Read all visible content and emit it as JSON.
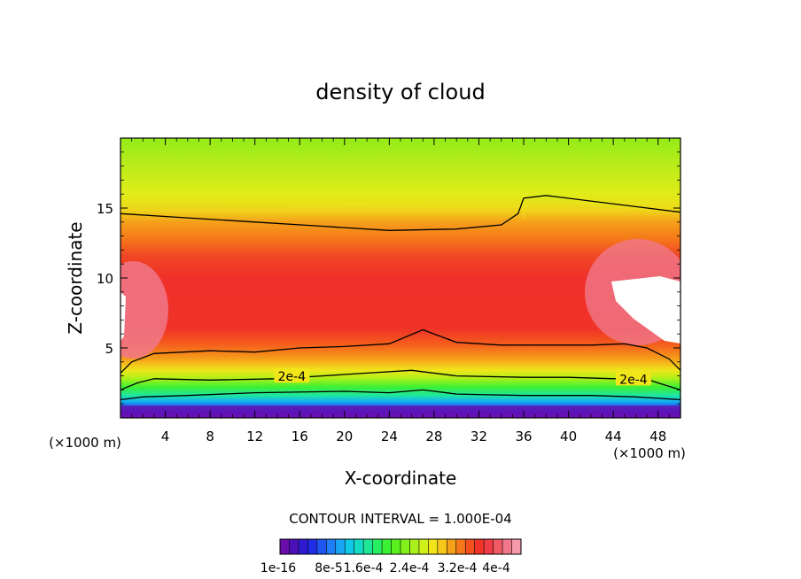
{
  "chart_data": {
    "type": "heatmap",
    "title": "density of cloud",
    "xlabel": "X-coordinate",
    "ylabel": "Z-coordinate",
    "x_unit_label": "(×1000 m)",
    "x_range": [
      0,
      50
    ],
    "y_range": [
      0,
      20
    ],
    "x_ticks": [
      4,
      8,
      12,
      16,
      20,
      24,
      28,
      32,
      36,
      40,
      44,
      48
    ],
    "y_ticks": [
      5,
      10,
      15
    ],
    "contour_interval_text": "CONTOUR INTERVAL = 1.000E-04",
    "contour_labels": [
      {
        "text": "2e-4",
        "x": 15.3,
        "z": 2.9
      },
      {
        "text": "2e-4",
        "x": 45.8,
        "z": 2.7
      }
    ],
    "contour_lines": [
      {
        "name": "1e-4",
        "points": [
          [
            0,
            1.3
          ],
          [
            2,
            1.5
          ],
          [
            6,
            1.6
          ],
          [
            12,
            1.8
          ],
          [
            20,
            1.9
          ],
          [
            24,
            1.8
          ],
          [
            27,
            2.0
          ],
          [
            30,
            1.7
          ],
          [
            36,
            1.6
          ],
          [
            42,
            1.6
          ],
          [
            46,
            1.5
          ],
          [
            48,
            1.4
          ],
          [
            50,
            1.3
          ]
        ]
      },
      {
        "name": "2e-4",
        "points": [
          [
            0,
            2.0
          ],
          [
            1.5,
            2.5
          ],
          [
            3,
            2.8
          ],
          [
            8,
            2.7
          ],
          [
            14,
            2.8
          ],
          [
            18,
            3.0
          ],
          [
            22,
            3.2
          ],
          [
            26,
            3.4
          ],
          [
            30,
            3.0
          ],
          [
            36,
            2.9
          ],
          [
            40,
            2.9
          ],
          [
            44,
            2.8
          ],
          [
            46.5,
            2.9
          ],
          [
            48,
            2.5
          ],
          [
            50,
            2.0
          ]
        ]
      },
      {
        "name": "3e-4",
        "points": [
          [
            0,
            3.2
          ],
          [
            1,
            4.0
          ],
          [
            3,
            4.6
          ],
          [
            8,
            4.8
          ],
          [
            12,
            4.7
          ],
          [
            16,
            5.0
          ],
          [
            20,
            5.1
          ],
          [
            24,
            5.3
          ],
          [
            27,
            6.3
          ],
          [
            30,
            5.4
          ],
          [
            34,
            5.2
          ],
          [
            38,
            5.2
          ],
          [
            42,
            5.2
          ],
          [
            45,
            5.3
          ],
          [
            47,
            5.0
          ],
          [
            49,
            4.2
          ],
          [
            50,
            3.4
          ]
        ]
      },
      {
        "name": "2e-4 (upper)",
        "points": [
          [
            0,
            14.6
          ],
          [
            6,
            14.3
          ],
          [
            12,
            14.0
          ],
          [
            18,
            13.7
          ],
          [
            24,
            13.4
          ],
          [
            30,
            13.5
          ],
          [
            34,
            13.8
          ],
          [
            35.5,
            14.6
          ],
          [
            36,
            15.7
          ],
          [
            38,
            15.9
          ],
          [
            42,
            15.5
          ],
          [
            46,
            15.1
          ],
          [
            50,
            14.7
          ]
        ]
      }
    ],
    "colorbar": {
      "colors": [
        "#6a0dab",
        "#4b0fb8",
        "#2f1ad0",
        "#1f2ee6",
        "#1f55f0",
        "#1f7df5",
        "#19a5f5",
        "#10c8e8",
        "#14dcc4",
        "#1ee896",
        "#28ee62",
        "#3cf034",
        "#5af01e",
        "#82f01a",
        "#aaf01a",
        "#d0f01a",
        "#f0e61a",
        "#f5c81a",
        "#f5a01a",
        "#f5781a",
        "#f5501e",
        "#f03228",
        "#f03c46",
        "#f05a64",
        "#f0788a",
        "#f59aaa"
      ],
      "tick_labels": [
        "1e-16",
        "8e-5",
        "1.6e-4",
        "2.4e-4",
        "3.2e-4",
        "4e-4"
      ]
    }
  }
}
